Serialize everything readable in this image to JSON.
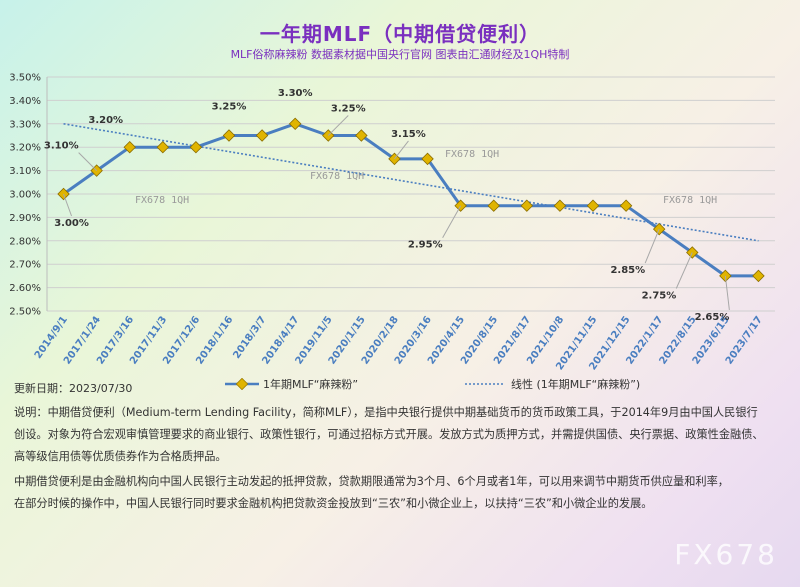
{
  "header": {
    "title": "一年期MLF（中期借贷便利）",
    "subtitle": "MLF俗称麻辣粉 数据素材据中国央行官网 图表由汇通财经及1QH特制"
  },
  "chart_data": {
    "type": "line",
    "categories": [
      "2014/9/1",
      "2017/1/24",
      "2017/3/16",
      "2017/11/3",
      "2017/12/6",
      "2018/1/16",
      "2018/3/7",
      "2018/4/17",
      "2019/11/5",
      "2020/1/15",
      "2020/2/18",
      "2020/3/16",
      "2020/4/15",
      "2020/8/15",
      "2021/8/17",
      "2021/10/8",
      "2021/11/15",
      "2021/12/15",
      "2022/1/17",
      "2022/8/15",
      "2023/6/15",
      "2023/7/17"
    ],
    "series": [
      {
        "name": "1年期MLF“麻辣粉”",
        "values": [
          3.0,
          3.1,
          3.2,
          3.2,
          3.2,
          3.25,
          3.25,
          3.3,
          3.25,
          3.25,
          3.15,
          3.15,
          2.95,
          2.95,
          2.95,
          2.95,
          2.95,
          2.95,
          2.85,
          2.75,
          2.65,
          2.65
        ]
      },
      {
        "name": "线性 (1年期MLF“麻辣粉”)",
        "values": [
          3.3,
          3.2762,
          3.2524,
          3.2286,
          3.2048,
          3.181,
          3.1571,
          3.1333,
          3.1095,
          3.0857,
          3.0619,
          3.0381,
          3.0143,
          2.9905,
          2.9667,
          2.9429,
          2.919,
          2.8952,
          2.8714,
          2.8476,
          2.8238,
          2.8
        ]
      }
    ],
    "y_ticks": [
      "2.50%",
      "2.60%",
      "2.70%",
      "2.80%",
      "2.90%",
      "3.00%",
      "3.10%",
      "3.20%",
      "3.30%",
      "3.40%",
      "3.50%"
    ],
    "ylim": [
      2.5,
      3.5
    ],
    "data_labels": [
      {
        "index": 0,
        "text": "3.00%"
      },
      {
        "index": 1,
        "text": "3.10%"
      },
      {
        "index": 2,
        "text": "3.20%"
      },
      {
        "index": 5,
        "text": "3.25%"
      },
      {
        "index": 7,
        "text": "3.30%"
      },
      {
        "index": 8,
        "text": "3.25%"
      },
      {
        "index": 10,
        "text": "3.15%"
      },
      {
        "index": 12,
        "text": "2.95%"
      },
      {
        "index": 18,
        "text": "2.85%"
      },
      {
        "index": 19,
        "text": "2.75%"
      },
      {
        "index": 20,
        "text": "2.65%"
      }
    ],
    "watermarks": [
      "FX678 1QH",
      "FX678 1QH",
      "FX678 1QH",
      "FX678 1QH"
    ],
    "line_color": "#4a7ec0",
    "marker_color": "#e0b400",
    "trend_color": "#4a7ec0",
    "legend_position": "bottom",
    "grid": true
  },
  "footer": {
    "updated": "更新日期：2023/07/30",
    "desc": [
      "说明：中期借贷便利（Medium-term Lending Facility，简称MLF），是指中央银行提供中期基础货币的货币政策工具，于2014年9月由中国人民银行",
      "创设。对象为符合宏观审慎管理要求的商业银行、政策性银行，可通过招标方式开展。发放方式为质押方式，并需提供国债、央行票据、政策性金融债、",
      "高等级信用债等优质债券作为合格质押品。",
      "中期借贷便利是由金融机构向中国人民银行主动发起的抵押贷款，贷款期限通常为3个月、6个月或者1年，可以用来调节中期货币供应量和利率，",
      "在部分时候的操作中，中国人民银行同时要求金融机构把贷款资金投放到“三农”和小微企业上，以扶持“三农”和小微企业的发展。"
    ],
    "brand": "FX678"
  }
}
